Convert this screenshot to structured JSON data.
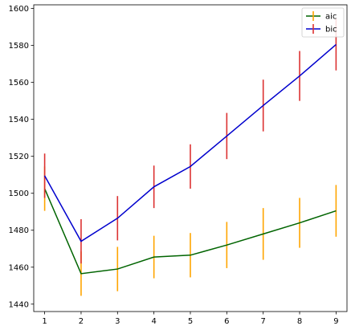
{
  "chart_data": {
    "type": "line",
    "title": "",
    "xlabel": "",
    "ylabel": "",
    "x": [
      1,
      2,
      3,
      4,
      5,
      6,
      7,
      8,
      9
    ],
    "xlim": [
      0.7,
      9.3
    ],
    "ylim": [
      1436,
      1602
    ],
    "xticks": [
      1,
      2,
      3,
      4,
      5,
      6,
      7,
      8,
      9
    ],
    "yticks": [
      1440,
      1460,
      1480,
      1500,
      1520,
      1540,
      1560,
      1580,
      1600
    ],
    "grid": false,
    "legend": "top-right",
    "series": [
      {
        "name": "aic",
        "line_color": "#006400",
        "errorbar_color": "#FFA500",
        "values": [
          1502.5,
          1456.5,
          1459.0,
          1465.5,
          1466.5,
          1472.0,
          1478.0,
          1484.0,
          1490.5
        ],
        "errors": [
          12.0,
          12.0,
          12.0,
          11.5,
          12.0,
          12.5,
          14.0,
          13.5,
          14.0
        ]
      },
      {
        "name": "bic",
        "line_color": "#0000CD",
        "errorbar_color": "#DC3232",
        "values": [
          1509.5,
          1474.0,
          1486.5,
          1503.5,
          1514.5,
          1531.0,
          1547.5,
          1563.5,
          1580.5
        ],
        "errors": [
          12.0,
          12.0,
          12.0,
          11.5,
          12.0,
          12.5,
          14.0,
          13.5,
          14.0
        ]
      }
    ]
  }
}
